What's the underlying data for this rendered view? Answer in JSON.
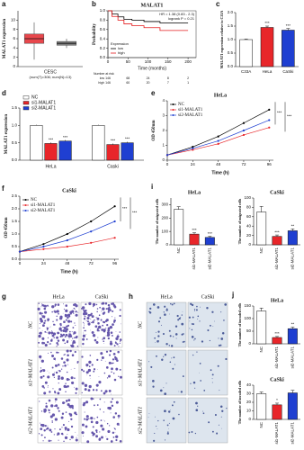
{
  "chart_data": [
    {
      "type": "box",
      "label": "a",
      "ylabel": "MALAT1 expression",
      "xlabel": "CESC",
      "subtitle": "(num(T)=306; num(N)=13)",
      "ylim": [
        0,
        12
      ],
      "yticks": [
        0,
        2,
        4,
        6,
        8,
        10
      ],
      "boxes": [
        {
          "min": 1.5,
          "q1": 5,
          "median": 6,
          "q3": 7,
          "max": 9.5,
          "color": "#e8474c"
        },
        {
          "min": 4,
          "q1": 4.6,
          "median": 5,
          "q3": 5.4,
          "max": 6,
          "color": "#808080"
        }
      ]
    },
    {
      "type": "survival",
      "label": "b",
      "title": "MALAT1",
      "annotations": [
        "HR = 1.38 (0.83 - 2.3)",
        "logrank P = 0.21"
      ],
      "xlabel": "Time (months)",
      "ylabel": "Probability",
      "legend_title": "Expression",
      "xlim": [
        0,
        220
      ],
      "xticks": [
        0,
        50,
        100,
        150,
        200
      ],
      "ylim": [
        0,
        1
      ],
      "yticks": [
        {
          "value": 0,
          "label": "0.0"
        },
        0.2,
        0.4,
        0.6,
        0.8,
        {
          "value": 1,
          "label": "1.0"
        }
      ],
      "series": [
        {
          "name": "low",
          "color": "#000000",
          "x": [
            0,
            10,
            25,
            40,
            60,
            90,
            130,
            200
          ],
          "values": [
            1,
            0.93,
            0.87,
            0.82,
            0.8,
            0.77,
            0.74,
            0.74
          ]
        },
        {
          "name": "high",
          "color": "#e41a1c",
          "x": [
            0,
            10,
            25,
            40,
            60,
            90,
            130,
            200
          ],
          "values": [
            1,
            0.88,
            0.8,
            0.72,
            0.68,
            0.64,
            0.58,
            0.58
          ]
        }
      ],
      "risk_table": {
        "title": "Number at risk",
        "rows": [
          {
            "name": "low",
            "values": [
              146,
              68,
              24,
              8,
              2
            ]
          },
          {
            "name": "high",
            "values": [
              146,
              60,
              20,
              7,
              1
            ]
          }
        ]
      }
    },
    {
      "type": "bar",
      "label": "c",
      "ylabel": "MALAT1 expression relative to C33A",
      "categories": [
        "C33A",
        "HeLa",
        "CaSki"
      ],
      "values": [
        1,
        1.45,
        1.35
      ],
      "errors": [
        0.02,
        0.05,
        0.06
      ],
      "colors": [
        "#ffffff",
        "#e8262a",
        "#1f3fd1"
      ],
      "significance": [
        null,
        "***",
        "***"
      ],
      "ylim": [
        0,
        2
      ],
      "yticks": [
        {
          "value": 0,
          "label": "0.0"
        },
        0.5,
        {
          "value": 1,
          "label": "1.0"
        },
        1.5,
        {
          "value": 2,
          "label": "2.0"
        }
      ]
    },
    {
      "type": "grouped_bar",
      "label": "d",
      "ylabel": "MALAT1 expression",
      "categories": [
        "HeLa",
        "Caski"
      ],
      "series": [
        {
          "name": "NC",
          "color": "#ffffff",
          "values": [
            1,
            1
          ],
          "errors": [
            0.02,
            0.02
          ]
        },
        {
          "name": "si1-MALAT1",
          "color": "#e8262a",
          "values": [
            0.48,
            0.45
          ],
          "errors": [
            0.03,
            0.03
          ],
          "significance": [
            "***",
            "***"
          ]
        },
        {
          "name": "si2-MALAT1",
          "color": "#1f3fd1",
          "values": [
            0.55,
            0.5
          ],
          "errors": [
            0.03,
            0.03
          ],
          "significance": [
            "***",
            "***"
          ]
        }
      ],
      "ylim": [
        0,
        1.5
      ],
      "yticks": [
        {
          "value": 0,
          "label": "0.0"
        },
        0.5,
        {
          "value": 1,
          "label": "1.0"
        },
        1.5
      ]
    },
    {
      "type": "line",
      "label": "e",
      "title": "HeLa",
      "xlabel": "Time (h)",
      "ylabel": "OD 450nm",
      "x": [
        0,
        24,
        48,
        72,
        96
      ],
      "xlim": [
        0,
        100
      ],
      "xticks": [
        0,
        24,
        48,
        72,
        96
      ],
      "ylim": [
        0,
        4
      ],
      "yticks": [
        0,
        1,
        2,
        3,
        4
      ],
      "series": [
        {
          "name": "NC",
          "color": "#000000",
          "values": [
            0.35,
            0.9,
            1.6,
            2.5,
            3.4
          ]
        },
        {
          "name": "si1-MALAT1",
          "color": "#e8262a",
          "values": [
            0.35,
            0.7,
            1.1,
            1.7,
            2.2
          ]
        },
        {
          "name": "si2-MALAT1",
          "color": "#1f3fd1",
          "values": [
            0.35,
            0.8,
            1.3,
            2.0,
            2.7
          ]
        }
      ],
      "significance": [
        "***",
        "***"
      ]
    },
    {
      "type": "line",
      "label": "f",
      "title": "CaSki",
      "xlabel": "Time (h)",
      "ylabel": "OD 450nm",
      "x": [
        0,
        24,
        48,
        72,
        96
      ],
      "xlim": [
        0,
        100
      ],
      "xticks": [
        0,
        24,
        48,
        72,
        96
      ],
      "ylim": [
        0,
        2.5
      ],
      "yticks": [
        {
          "value": 0,
          "label": "0.0"
        },
        0.5,
        {
          "value": 1,
          "label": "1.0"
        },
        1.5,
        {
          "value": 2,
          "label": "2.0"
        },
        2.5
      ],
      "series": [
        {
          "name": "NC",
          "color": "#000000",
          "values": [
            0.3,
            0.6,
            1.0,
            1.5,
            2.1
          ]
        },
        {
          "name": "si1-MALAT1",
          "color": "#e8262a",
          "values": [
            0.3,
            0.4,
            0.5,
            0.65,
            0.85
          ]
        },
        {
          "name": "si2-MALAT1",
          "color": "#1f3fd1",
          "values": [
            0.3,
            0.5,
            0.75,
            1.1,
            1.5
          ]
        }
      ],
      "significance": [
        "***",
        "***"
      ]
    },
    {
      "type": "bar",
      "label": "i",
      "title": "HeLa",
      "ylabel": "The number of migrated cells",
      "categories": [
        "NC",
        "si1-MALAT1",
        "si2-MALAT1"
      ],
      "values": [
        265,
        80,
        55
      ],
      "errors": [
        20,
        10,
        8
      ],
      "colors": [
        "#ffffff",
        "#e8262a",
        "#1f3fd1"
      ],
      "significance": [
        null,
        "***",
        "***"
      ],
      "ylim": [
        0,
        350
      ],
      "yticks": [
        0,
        100,
        200,
        300
      ]
    },
    {
      "type": "bar",
      "title": "CaSki",
      "ylabel": "The number of migrated cells",
      "categories": [
        "NC",
        "si1-MALAT1",
        "si2-MALAT1"
      ],
      "values": [
        70,
        18,
        30
      ],
      "errors": [
        12,
        3,
        4
      ],
      "colors": [
        "#ffffff",
        "#e8262a",
        "#1f3fd1"
      ],
      "significance": [
        null,
        "***",
        "**"
      ],
      "ylim": [
        0,
        100
      ],
      "yticks": [
        0,
        20,
        40,
        60,
        80,
        100
      ]
    },
    {
      "type": "bar",
      "label": "j",
      "title": "HeLa",
      "ylabel": "The number of invaded cells",
      "categories": [
        "NC",
        "si1-MALAT1",
        "si2-MALAT1"
      ],
      "values": [
        130,
        25,
        60
      ],
      "errors": [
        12,
        4,
        6
      ],
      "colors": [
        "#ffffff",
        "#e8262a",
        "#1f3fd1"
      ],
      "significance": [
        null,
        "***",
        "**"
      ],
      "ylim": [
        0,
        150
      ],
      "yticks": [
        0,
        50,
        100,
        150
      ]
    },
    {
      "type": "bar",
      "title": "CaSki",
      "ylabel": "The number of invaded cells",
      "categories": [
        "NC",
        "si1-MALAT1",
        "si2-MALAT1"
      ],
      "values": [
        30,
        17,
        31
      ],
      "errors": [
        2,
        2,
        3
      ],
      "colors": [
        "#ffffff",
        "#e8262a",
        "#1f3fd1"
      ],
      "significance": [
        null,
        "*",
        null
      ],
      "ylim": [
        0,
        40
      ],
      "yticks": [
        0,
        10,
        20,
        30,
        40
      ]
    }
  ],
  "figure_panels": [
    {
      "label": "g",
      "columns": [
        "HeLa",
        "CaSki"
      ],
      "rows": [
        "NC",
        "si1-MALAT1",
        "si2-MALAT1"
      ]
    },
    {
      "label": "h",
      "columns": [
        "HeLa",
        "CaSki"
      ],
      "rows": [
        "NC",
        "si1-MALAT1",
        "si2-MALAT1"
      ]
    }
  ]
}
